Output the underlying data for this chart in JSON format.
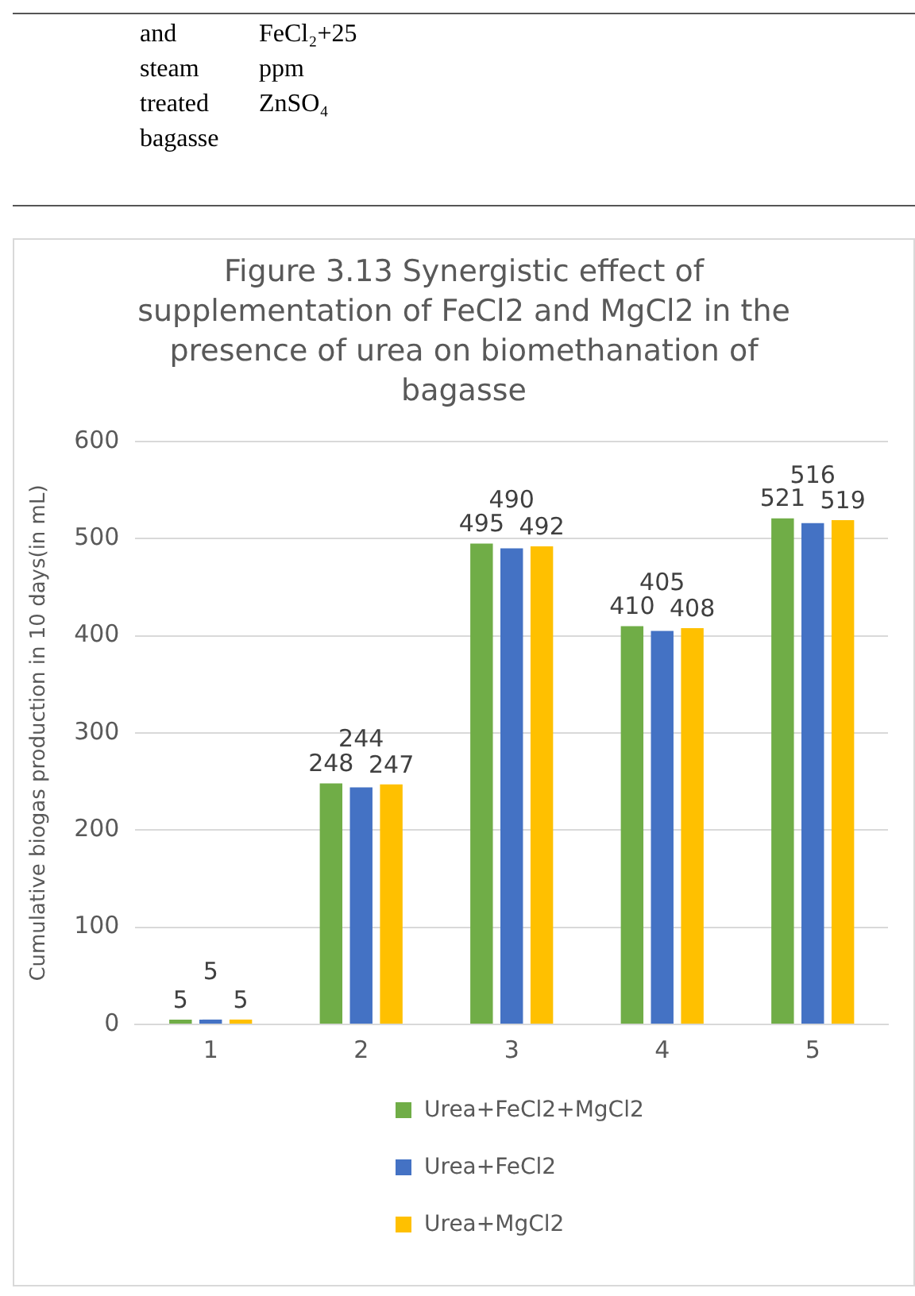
{
  "chart_data": {
    "type": "bar",
    "title": "Figure 3.13 Synergistic effect of supplementation of FeCl2 and MgCl2 in the presence of urea on biomethanation of bagasse",
    "ylabel": "Cumulative biogas production in 10 days(in mL)",
    "annotations": [
      "and steam treated bagasse",
      "FeCl₂+25 ppm ZnSO₄"
    ],
    "categories": [
      "1",
      "2",
      "3",
      "4",
      "5"
    ],
    "series": [
      {
        "name": "Urea+FeCl2+MgCl2",
        "color": "#70ad47",
        "values": [
          5,
          248,
          495,
          410,
          521
        ]
      },
      {
        "name": "Urea+FeCl2",
        "color": "#4472c4",
        "values": [
          5,
          244,
          490,
          405,
          516
        ]
      },
      {
        "name": "Urea+MgCl2",
        "color": "#ffc000",
        "values": [
          5,
          247,
          492,
          408,
          519
        ]
      }
    ],
    "ylim": [
      0,
      600
    ],
    "yticks": [
      0,
      100,
      200,
      300,
      400,
      500,
      600
    ],
    "grid": "y",
    "legend": "bottom",
    "data_labels": true
  }
}
